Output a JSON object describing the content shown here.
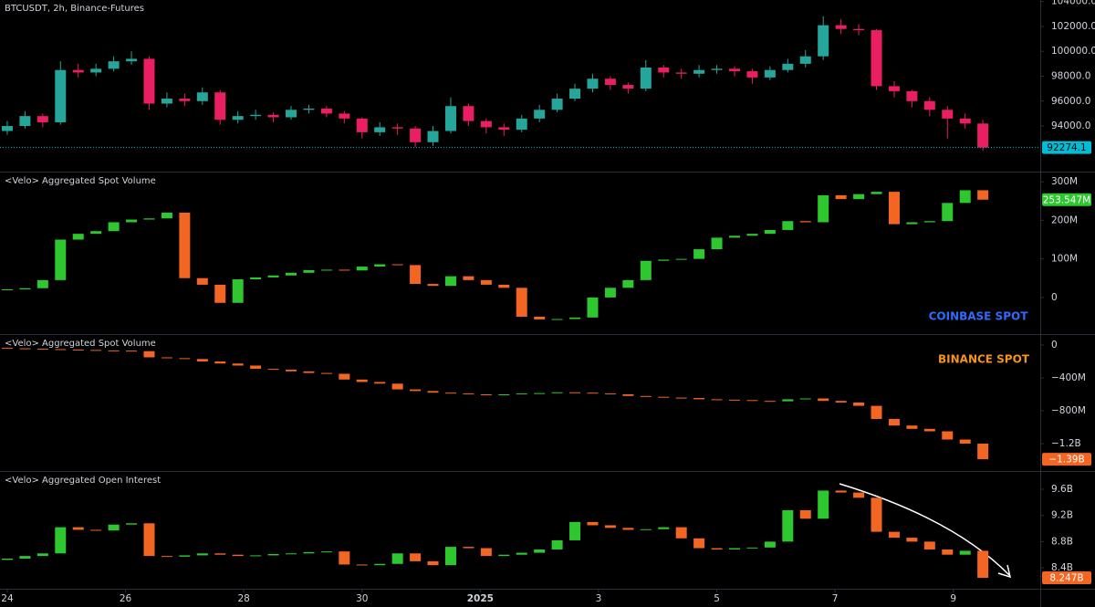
{
  "chart_data": [
    {
      "type": "candlestick",
      "title": "BTCUSDT, 2h, Binance-Futures",
      "up_color": "#26a69a",
      "down_color": "#e91e63",
      "badge_color": "#00bcd4",
      "badge_text": "#000000",
      "x": [
        0,
        0.3,
        0.6,
        0.9,
        1.2,
        1.5,
        1.8,
        2.1,
        2.4,
        2.7,
        3,
        3.3,
        3.6,
        3.9,
        4.2,
        4.5,
        4.8,
        5.1,
        5.4,
        5.7,
        6,
        6.3,
        6.6,
        6.9,
        7.2,
        7.5,
        7.8,
        8.1,
        8.4,
        8.7,
        9,
        9.3,
        9.6,
        9.9,
        10.2,
        10.5,
        10.8,
        11.1,
        11.4,
        11.7,
        12,
        12.3,
        12.6,
        12.9,
        13.2,
        13.5,
        13.8,
        14.1,
        14.4,
        14.7,
        15,
        15.3,
        15.6,
        15.9,
        16.2,
        16.5
      ],
      "xlim": [
        -0.123,
        17.47
      ],
      "xticks": [
        {
          "value": 0,
          "label": "24"
        },
        {
          "value": 2,
          "label": "26"
        },
        {
          "value": 4,
          "label": "28"
        },
        {
          "value": 6,
          "label": "30"
        },
        {
          "value": 8,
          "label": "2025"
        },
        {
          "value": 10,
          "label": "3"
        },
        {
          "value": 12,
          "label": "5"
        },
        {
          "value": 14,
          "label": "7"
        },
        {
          "value": 16,
          "label": "9"
        }
      ],
      "ylim": [
        90337,
        104125
      ],
      "yticks": [
        {
          "value": 104000,
          "label": "104000.0"
        },
        {
          "value": 102000,
          "label": "102000.0"
        },
        {
          "value": 100000,
          "label": "100000.0"
        },
        {
          "value": 98000,
          "label": "98000.0"
        },
        {
          "value": 96000,
          "label": "96000.0"
        },
        {
          "value": 94000,
          "label": "94000.0"
        }
      ],
      "open": [
        93600,
        94000,
        94800,
        94300,
        98500,
        98300,
        98600,
        99200,
        99400,
        95800,
        96200,
        96000,
        96700,
        94500,
        94800,
        94900,
        94700,
        95300,
        95400,
        95000,
        94600,
        93500,
        93900,
        93800,
        92700,
        93600,
        95600,
        94400,
        93900,
        93700,
        94600,
        95300,
        96200,
        97000,
        97800,
        97300,
        97000,
        98700,
        98300,
        98200,
        98500,
        98600,
        98400,
        97900,
        98500,
        99000,
        99600,
        102100,
        101800,
        101700,
        97200,
        96800,
        96000,
        95300,
        94600,
        94200
      ],
      "high": [
        94400,
        95200,
        95000,
        99200,
        99000,
        99000,
        99600,
        100000,
        99600,
        96700,
        96600,
        97100,
        96900,
        95200,
        95300,
        95100,
        95600,
        95700,
        95600,
        95200,
        94700,
        94300,
        94200,
        94000,
        94000,
        96300,
        95800,
        94600,
        94200,
        94900,
        95700,
        96600,
        97400,
        98200,
        98000,
        97500,
        99300,
        98900,
        98600,
        98900,
        98900,
        98800,
        98600,
        98800,
        99400,
        100100,
        102800,
        102600,
        102200,
        101800,
        97600,
        96900,
        96300,
        95600,
        95000,
        94500
      ],
      "low": [
        93300,
        93800,
        93900,
        94100,
        97900,
        98000,
        98400,
        98900,
        95300,
        95500,
        95600,
        95700,
        94100,
        94200,
        94500,
        94300,
        94500,
        95000,
        94700,
        94200,
        93000,
        93200,
        93300,
        92300,
        92400,
        93400,
        94000,
        93400,
        93200,
        93500,
        94300,
        95100,
        96000,
        96700,
        96900,
        96600,
        96800,
        97900,
        97800,
        97900,
        98200,
        98000,
        97400,
        97700,
        98300,
        98700,
        99300,
        101400,
        101300,
        96900,
        96300,
        95500,
        94800,
        93000,
        93800,
        92000
      ],
      "close": [
        94000,
        94800,
        94300,
        98500,
        98300,
        98600,
        99200,
        99400,
        95800,
        96200,
        96000,
        96700,
        94500,
        94800,
        94900,
        94700,
        95300,
        95400,
        95000,
        94600,
        93500,
        93900,
        93800,
        92700,
        93600,
        95600,
        94400,
        93900,
        93700,
        94600,
        95300,
        96200,
        97000,
        97800,
        97300,
        97000,
        98700,
        98300,
        98200,
        98500,
        98600,
        98400,
        97900,
        98500,
        99000,
        99600,
        102100,
        101800,
        101700,
        97200,
        96800,
        96000,
        95300,
        94600,
        94200,
        92274.1
      ],
      "last_value_label": "92274.1"
    },
    {
      "type": "candlestick",
      "title": "<Velo> Aggregated Spot Volume",
      "annotation": "COINBASE SPOT",
      "annotation_color": "#2f6bff",
      "up_color": "#2fc72f",
      "down_color": "#f26522",
      "badge_color": "#2fc72f",
      "badge_text": "#ffffff",
      "ylim": [
        -95000000,
        324000000
      ],
      "yticks": [
        {
          "value": 300000000,
          "label": "300M"
        },
        {
          "value": 200000000,
          "label": "200M"
        },
        {
          "value": 100000000,
          "label": "100M"
        },
        0
      ],
      "open": [
        20000000,
        21000000,
        24000000,
        45000000,
        150000000,
        165000000,
        172000000,
        195000000,
        202000000,
        205000000,
        220000000,
        50000000,
        33000000,
        -14000000,
        47000000,
        52000000,
        57000000,
        64000000,
        71000000,
        72000000,
        70000000,
        80000000,
        86000000,
        84000000,
        35000000,
        30000000,
        55000000,
        45000000,
        33000000,
        25000000,
        -50000000,
        -57000000,
        -56000000,
        -52000000,
        0,
        25000000,
        45000000,
        95000000,
        98000000,
        100000000,
        125000000,
        155000000,
        160000000,
        165000000,
        175000000,
        198000000,
        195000000,
        265000000,
        255000000,
        268000000,
        274000000,
        190000000,
        195000000,
        198000000,
        245000000,
        278000000
      ],
      "close": [
        21000000,
        24000000,
        45000000,
        150000000,
        165000000,
        172000000,
        195000000,
        202000000,
        205000000,
        220000000,
        50000000,
        33000000,
        -14000000,
        47000000,
        52000000,
        57000000,
        64000000,
        71000000,
        72000000,
        70000000,
        80000000,
        86000000,
        84000000,
        35000000,
        30000000,
        55000000,
        45000000,
        33000000,
        25000000,
        -50000000,
        -57000000,
        -56000000,
        -52000000,
        0,
        25000000,
        45000000,
        95000000,
        98000000,
        100000000,
        125000000,
        155000000,
        160000000,
        165000000,
        175000000,
        198000000,
        195000000,
        265000000,
        255000000,
        268000000,
        274000000,
        190000000,
        195000000,
        198000000,
        245000000,
        278000000,
        253547000
      ],
      "last_value_label": "253.547M"
    },
    {
      "type": "candlestick",
      "title": "<Velo> Aggregated Spot Volume",
      "annotation": "BINANCE SPOT",
      "annotation_color": "#f7931a",
      "up_color": "#2fc72f",
      "down_color": "#f26522",
      "badge_color": "#f26522",
      "badge_text": "#ffffff",
      "ylim": [
        -1533000000,
        122000000
      ],
      "yticks": [
        0,
        {
          "value": -400000000,
          "label": "−400M"
        },
        {
          "value": -800000000,
          "label": "−800M"
        },
        {
          "value": -1200000000,
          "label": "−1.2B"
        }
      ],
      "open": [
        -35000000,
        -40000000,
        -45000000,
        -50000000,
        -55000000,
        -60000000,
        -65000000,
        -68000000,
        -75000000,
        -150000000,
        -160000000,
        -170000000,
        -200000000,
        -225000000,
        -250000000,
        -290000000,
        -300000000,
        -320000000,
        -340000000,
        -350000000,
        -420000000,
        -450000000,
        -470000000,
        -540000000,
        -560000000,
        -580000000,
        -590000000,
        -600000000,
        -610000000,
        -600000000,
        -590000000,
        -585000000,
        -575000000,
        -580000000,
        -590000000,
        -600000000,
        -620000000,
        -630000000,
        -640000000,
        -645000000,
        -660000000,
        -665000000,
        -670000000,
        -680000000,
        -685000000,
        -660000000,
        -650000000,
        -680000000,
        -700000000,
        -740000000,
        -900000000,
        -980000000,
        -1020000000,
        -1050000000,
        -1150000000,
        -1200000000
      ],
      "close": [
        -40000000,
        -45000000,
        -50000000,
        -55000000,
        -60000000,
        -65000000,
        -68000000,
        -75000000,
        -150000000,
        -160000000,
        -170000000,
        -200000000,
        -225000000,
        -250000000,
        -290000000,
        -300000000,
        -320000000,
        -340000000,
        -350000000,
        -420000000,
        -450000000,
        -470000000,
        -540000000,
        -560000000,
        -580000000,
        -590000000,
        -600000000,
        -610000000,
        -600000000,
        -590000000,
        -585000000,
        -575000000,
        -580000000,
        -590000000,
        -600000000,
        -620000000,
        -630000000,
        -640000000,
        -645000000,
        -660000000,
        -665000000,
        -670000000,
        -680000000,
        -685000000,
        -660000000,
        -650000000,
        -680000000,
        -700000000,
        -740000000,
        -900000000,
        -980000000,
        -1020000000,
        -1050000000,
        -1150000000,
        -1200000000,
        -1390000000
      ],
      "last_value_label": "−1.39B"
    },
    {
      "type": "candlestick",
      "title": "<Velo> Aggregated Open Interest",
      "up_color": "#2fc72f",
      "down_color": "#f26522",
      "badge_color": "#f26522",
      "badge_text": "#ffffff",
      "ylim": [
        8080000000,
        9865000000
      ],
      "yticks": [
        {
          "value": 9600000000,
          "label": "9.6B"
        },
        {
          "value": 9200000000,
          "label": "9.2B"
        },
        {
          "value": 8800000000,
          "label": "8.8B"
        },
        {
          "value": 8400000000,
          "label": "8.4B"
        }
      ],
      "open": [
        8520000000,
        8540000000,
        8580000000,
        8620000000,
        9020000000,
        8980000000,
        8970000000,
        9060000000,
        9080000000,
        8580000000,
        8570000000,
        8590000000,
        8620000000,
        8600000000,
        8580000000,
        8590000000,
        8610000000,
        8620000000,
        8640000000,
        8650000000,
        8450000000,
        8440000000,
        8460000000,
        8620000000,
        8500000000,
        8440000000,
        8720000000,
        8700000000,
        8580000000,
        8600000000,
        8630000000,
        8680000000,
        8820000000,
        9100000000,
        9050000000,
        9010000000,
        8980000000,
        8990000000,
        9020000000,
        8850000000,
        8700000000,
        8680000000,
        8700000000,
        8710000000,
        8800000000,
        9280000000,
        9150000000,
        9580000000,
        9550000000,
        9470000000,
        8950000000,
        8860000000,
        8800000000,
        8680000000,
        8600000000,
        8660000000
      ],
      "close": [
        8540000000,
        8580000000,
        8620000000,
        9020000000,
        8980000000,
        8970000000,
        9060000000,
        9080000000,
        8580000000,
        8570000000,
        8590000000,
        8620000000,
        8600000000,
        8580000000,
        8590000000,
        8610000000,
        8620000000,
        8640000000,
        8650000000,
        8450000000,
        8440000000,
        8460000000,
        8620000000,
        8500000000,
        8440000000,
        8720000000,
        8700000000,
        8580000000,
        8600000000,
        8630000000,
        8680000000,
        8820000000,
        9100000000,
        9050000000,
        9010000000,
        8980000000,
        8990000000,
        9020000000,
        8850000000,
        8700000000,
        8680000000,
        8700000000,
        8710000000,
        8800000000,
        9280000000,
        9150000000,
        9580000000,
        9550000000,
        9470000000,
        8950000000,
        8860000000,
        8800000000,
        8680000000,
        8600000000,
        8660000000,
        8247000000
      ],
      "last_value_label": "8.247B"
    }
  ]
}
